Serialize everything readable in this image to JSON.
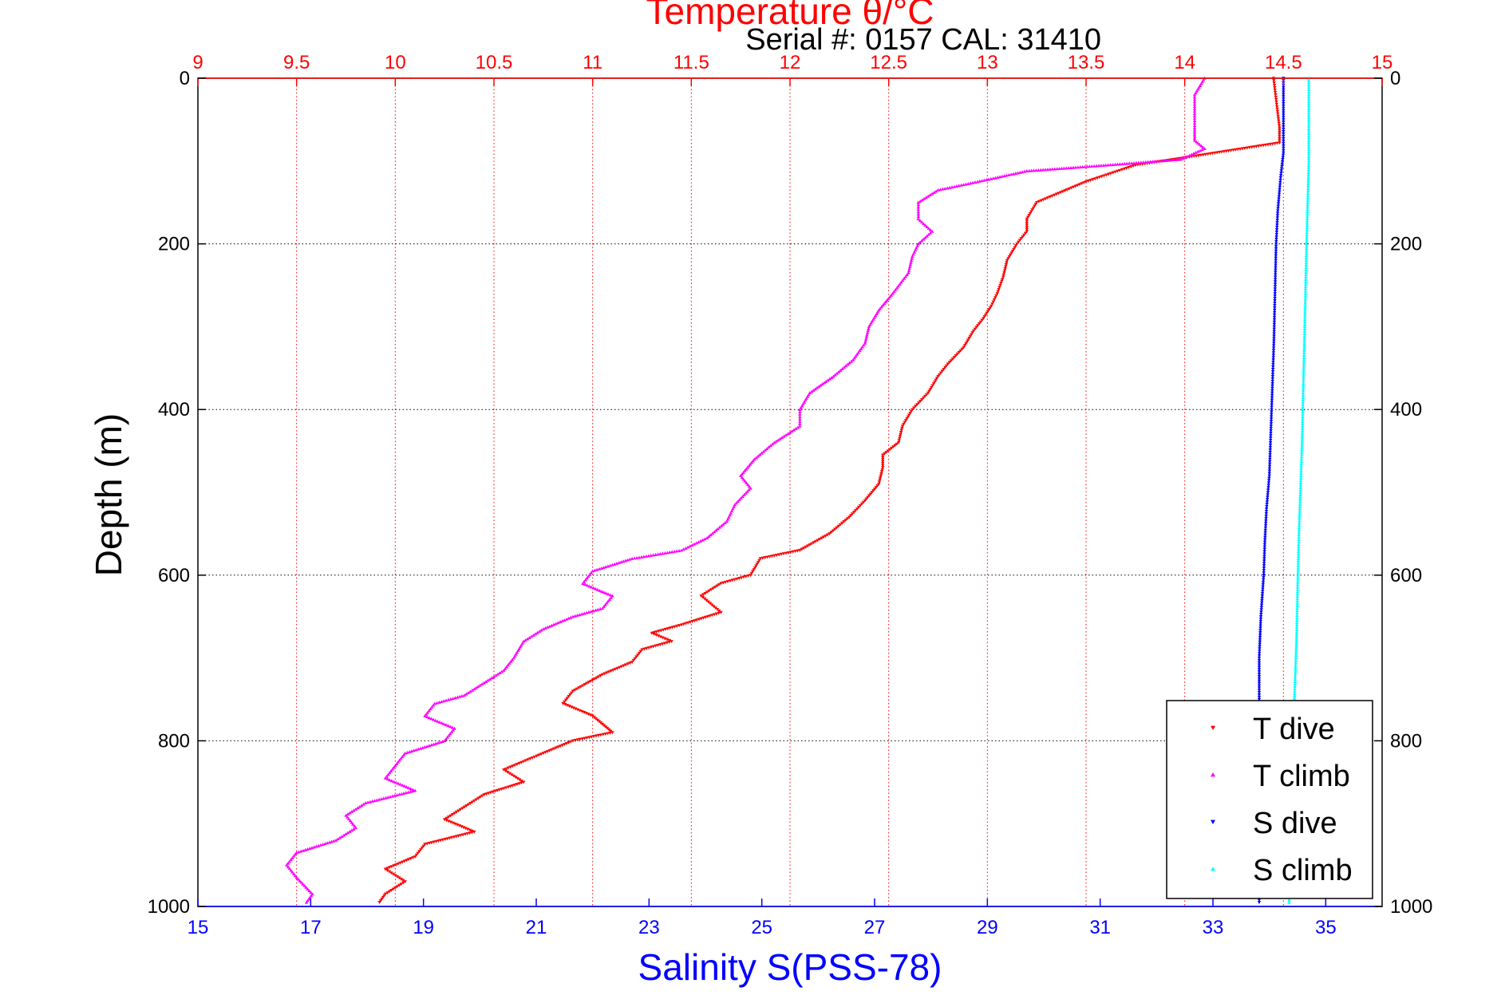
{
  "chart_data": {
    "type": "scatter",
    "top_axis": {
      "label": "Temperature θ/°C",
      "range": [
        9,
        15
      ],
      "ticks": [
        "9",
        "9.5",
        "10",
        "10.5",
        "11",
        "11.5",
        "12",
        "12.5",
        "13",
        "13.5",
        "14",
        "14.5",
        "15"
      ],
      "color": "#ff0000"
    },
    "bottom_axis": {
      "label": "Salinity S(PSS-78)",
      "range": [
        15,
        36
      ],
      "ticks": [
        "15",
        "17",
        "19",
        "21",
        "23",
        "25",
        "27",
        "29",
        "31",
        "33",
        "35"
      ],
      "color": "#0000ff"
    },
    "y_axis": {
      "label": "Depth (m)",
      "range": [
        0,
        1000
      ],
      "reversed": true,
      "ticks": [
        "0",
        "200",
        "400",
        "600",
        "800",
        "1000"
      ]
    },
    "subtitle": "Serial #: 0157  CAL: 31410",
    "grid": true,
    "legend_position": "bottom-right",
    "series": [
      {
        "name": "T dive",
        "axis": "temperature",
        "color": "#ff0000",
        "marker": "triangle-down",
        "points": [
          [
            14.45,
            0
          ],
          [
            14.46,
            20
          ],
          [
            14.47,
            40
          ],
          [
            14.48,
            60
          ],
          [
            14.48,
            78
          ],
          [
            14.0,
            96
          ],
          [
            13.75,
            105
          ],
          [
            13.5,
            125
          ],
          [
            13.35,
            140
          ],
          [
            13.25,
            150
          ],
          [
            13.2,
            170
          ],
          [
            13.2,
            185
          ],
          [
            13.15,
            200
          ],
          [
            13.1,
            220
          ],
          [
            13.08,
            240
          ],
          [
            13.05,
            260
          ],
          [
            13.02,
            275
          ],
          [
            12.98,
            290
          ],
          [
            12.93,
            305
          ],
          [
            12.88,
            325
          ],
          [
            12.8,
            345
          ],
          [
            12.75,
            360
          ],
          [
            12.7,
            380
          ],
          [
            12.62,
            400
          ],
          [
            12.57,
            420
          ],
          [
            12.55,
            440
          ],
          [
            12.47,
            455
          ],
          [
            12.47,
            470
          ],
          [
            12.45,
            490
          ],
          [
            12.38,
            510
          ],
          [
            12.3,
            530
          ],
          [
            12.2,
            550
          ],
          [
            12.05,
            570
          ],
          [
            11.85,
            580
          ],
          [
            11.8,
            600
          ],
          [
            11.65,
            610
          ],
          [
            11.55,
            625
          ],
          [
            11.65,
            645
          ],
          [
            11.45,
            660
          ],
          [
            11.3,
            670
          ],
          [
            11.4,
            680
          ],
          [
            11.25,
            690
          ],
          [
            11.2,
            705
          ],
          [
            11.05,
            720
          ],
          [
            10.9,
            740
          ],
          [
            10.85,
            755
          ],
          [
            11.0,
            770
          ],
          [
            11.05,
            780
          ],
          [
            11.1,
            790
          ],
          [
            10.9,
            800
          ],
          [
            10.75,
            815
          ],
          [
            10.65,
            825
          ],
          [
            10.55,
            835
          ],
          [
            10.65,
            850
          ],
          [
            10.45,
            865
          ],
          [
            10.35,
            880
          ],
          [
            10.25,
            895
          ],
          [
            10.4,
            910
          ],
          [
            10.15,
            925
          ],
          [
            10.1,
            940
          ],
          [
            9.95,
            955
          ],
          [
            10.05,
            970
          ],
          [
            9.95,
            985
          ],
          [
            9.92,
            995
          ]
        ]
      },
      {
        "name": "T climb",
        "axis": "temperature",
        "color": "#ff00ff",
        "marker": "triangle-up",
        "points": [
          [
            14.1,
            0
          ],
          [
            14.05,
            20
          ],
          [
            14.05,
            40
          ],
          [
            14.05,
            60
          ],
          [
            14.05,
            75
          ],
          [
            14.1,
            85
          ],
          [
            13.98,
            98
          ],
          [
            13.6,
            105
          ],
          [
            13.2,
            112
          ],
          [
            12.95,
            125
          ],
          [
            12.75,
            135
          ],
          [
            12.65,
            150
          ],
          [
            12.65,
            170
          ],
          [
            12.72,
            185
          ],
          [
            12.65,
            200
          ],
          [
            12.62,
            215
          ],
          [
            12.6,
            235
          ],
          [
            12.52,
            260
          ],
          [
            12.45,
            280
          ],
          [
            12.4,
            300
          ],
          [
            12.38,
            320
          ],
          [
            12.32,
            340
          ],
          [
            12.22,
            360
          ],
          [
            12.1,
            380
          ],
          [
            12.05,
            400
          ],
          [
            12.05,
            420
          ],
          [
            11.92,
            440
          ],
          [
            11.82,
            460
          ],
          [
            11.75,
            480
          ],
          [
            11.8,
            495
          ],
          [
            11.72,
            515
          ],
          [
            11.68,
            535
          ],
          [
            11.58,
            555
          ],
          [
            11.45,
            570
          ],
          [
            11.2,
            580
          ],
          [
            11.0,
            595
          ],
          [
            10.95,
            610
          ],
          [
            11.1,
            625
          ],
          [
            11.05,
            640
          ],
          [
            10.9,
            650
          ],
          [
            10.75,
            665
          ],
          [
            10.65,
            680
          ],
          [
            10.6,
            700
          ],
          [
            10.55,
            715
          ],
          [
            10.45,
            730
          ],
          [
            10.35,
            745
          ],
          [
            10.2,
            755
          ],
          [
            10.15,
            770
          ],
          [
            10.3,
            785
          ],
          [
            10.25,
            800
          ],
          [
            10.05,
            815
          ],
          [
            10.0,
            830
          ],
          [
            9.95,
            845
          ],
          [
            10.1,
            860
          ],
          [
            9.85,
            875
          ],
          [
            9.75,
            890
          ],
          [
            9.8,
            905
          ],
          [
            9.7,
            920
          ],
          [
            9.5,
            935
          ],
          [
            9.45,
            950
          ],
          [
            9.5,
            965
          ],
          [
            9.58,
            985
          ],
          [
            9.55,
            995
          ]
        ]
      },
      {
        "name": "S dive",
        "axis": "salinity",
        "color": "#0000ff",
        "marker": "triangle-down",
        "points": [
          [
            34.25,
            0
          ],
          [
            34.25,
            50
          ],
          [
            34.25,
            90
          ],
          [
            34.2,
            120
          ],
          [
            34.15,
            160
          ],
          [
            34.12,
            200
          ],
          [
            34.1,
            260
          ],
          [
            34.08,
            320
          ],
          [
            34.05,
            380
          ],
          [
            34.02,
            440
          ],
          [
            34.0,
            480
          ],
          [
            33.95,
            520
          ],
          [
            33.92,
            560
          ],
          [
            33.9,
            600
          ],
          [
            33.85,
            650
          ],
          [
            33.82,
            700
          ],
          [
            33.82,
            750
          ],
          [
            33.82,
            800
          ],
          [
            33.82,
            850
          ],
          [
            33.82,
            900
          ],
          [
            33.82,
            950
          ],
          [
            33.82,
            995
          ]
        ]
      },
      {
        "name": "S climb",
        "axis": "salinity",
        "color": "#00ffff",
        "marker": "triangle-up",
        "points": [
          [
            34.7,
            0
          ],
          [
            34.7,
            50
          ],
          [
            34.7,
            100
          ],
          [
            34.68,
            150
          ],
          [
            34.66,
            200
          ],
          [
            34.64,
            260
          ],
          [
            34.62,
            320
          ],
          [
            34.6,
            380
          ],
          [
            34.58,
            440
          ],
          [
            34.55,
            500
          ],
          [
            34.52,
            560
          ],
          [
            34.5,
            620
          ],
          [
            34.48,
            680
          ],
          [
            34.45,
            740
          ],
          [
            34.42,
            800
          ],
          [
            34.4,
            860
          ],
          [
            34.38,
            920
          ],
          [
            34.35,
            995
          ]
        ]
      }
    ]
  }
}
